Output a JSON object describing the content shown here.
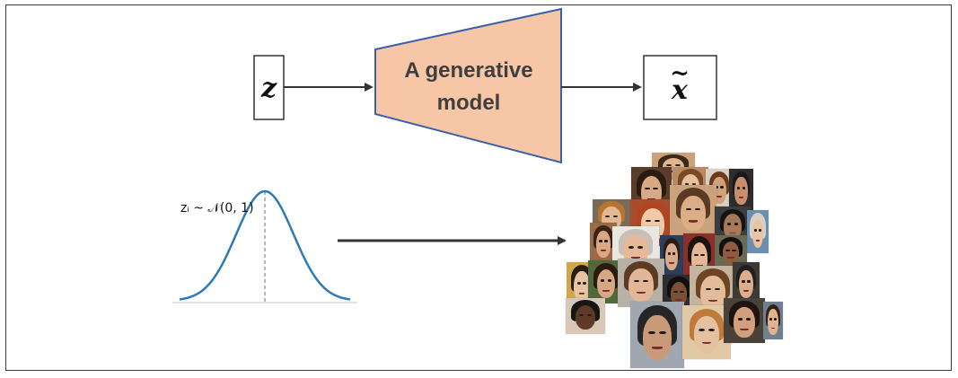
{
  "diagram": {
    "input_label": "z",
    "model_label_line1": "A generative",
    "model_label_line2": "model",
    "output_label": "x",
    "output_tilde": "~",
    "distribution_label": "zᵢ ~ 𝒩(0, 1)"
  },
  "colors": {
    "model_fill": "#f6c6a7",
    "model_stroke": "#3b5fa8",
    "curve": "#2e7ab5",
    "arrow": "#333333"
  },
  "faces": [
    {
      "bg": "#c9a27a",
      "skin": "#e0b48f",
      "hair": "#3a2a1c"
    },
    {
      "bg": "#5b3b2a",
      "skin": "#d9a884",
      "hair": "#2a1a10"
    },
    {
      "bg": "#b98a63",
      "skin": "#e8c09c",
      "hair": "#7a4a26"
    },
    {
      "bg": "#d8d0c4",
      "skin": "#d3a07c",
      "hair": "#6b3a1c"
    },
    {
      "bg": "#2d2d2d",
      "skin": "#c98e6c",
      "hair": "#1a1a1a"
    },
    {
      "bg": "#7b6a5a",
      "skin": "#e3b892",
      "hair": "#b5762f"
    },
    {
      "bg": "#a84b2d",
      "skin": "#efc9a8",
      "hair": "#b0451f"
    },
    {
      "bg": "#caa27d",
      "skin": "#dcae88",
      "hair": "#5a3a22"
    },
    {
      "bg": "#3c3c3c",
      "skin": "#a7775a",
      "hair": "#141414"
    },
    {
      "bg": "#6a8fb0",
      "skin": "#e9c3a2",
      "hair": "#d8d0c4"
    },
    {
      "bg": "#9b6b48",
      "skin": "#d9a784",
      "hair": "#3a2418"
    },
    {
      "bg": "#eae6e0",
      "skin": "#e6b998",
      "hair": "#c8c0b8"
    },
    {
      "bg": "#2b3f5c",
      "skin": "#d7ab8c",
      "hair": "#2a1c12"
    },
    {
      "bg": "#8a2f2a",
      "skin": "#e4b896",
      "hair": "#1d140e"
    },
    {
      "bg": "#6a6a52",
      "skin": "#8f5c3e",
      "hair": "#111"
    },
    {
      "bg": "#d0a84a",
      "skin": "#e8c4a2",
      "hair": "#2d1c10"
    },
    {
      "bg": "#4e6a3a",
      "skin": "#d8a784",
      "hair": "#2a1b10"
    },
    {
      "bg": "#b7b1a6",
      "skin": "#e2b696",
      "hair": "#5c3b24"
    },
    {
      "bg": "#2e2e30",
      "skin": "#7d4f35",
      "hair": "#0f0f0f"
    },
    {
      "bg": "#c5b4a0",
      "skin": "#e3bc9c",
      "hair": "#6d4424"
    },
    {
      "bg": "#3d3a36",
      "skin": "#dcae8c",
      "hair": "#202020"
    },
    {
      "bg": "#d8c8b8",
      "skin": "#5e3b28",
      "hair": "#151515"
    },
    {
      "bg": "#a0a7b0",
      "skin": "#c99a78",
      "hair": "#262626"
    },
    {
      "bg": "#e2c9a6",
      "skin": "#e6c1a1",
      "hair": "#c07b3a"
    },
    {
      "bg": "#4a4238",
      "skin": "#d2a07d",
      "hair": "#1e1510"
    },
    {
      "bg": "#6f7f8d",
      "skin": "#e0b391",
      "hair": "#332016"
    }
  ]
}
